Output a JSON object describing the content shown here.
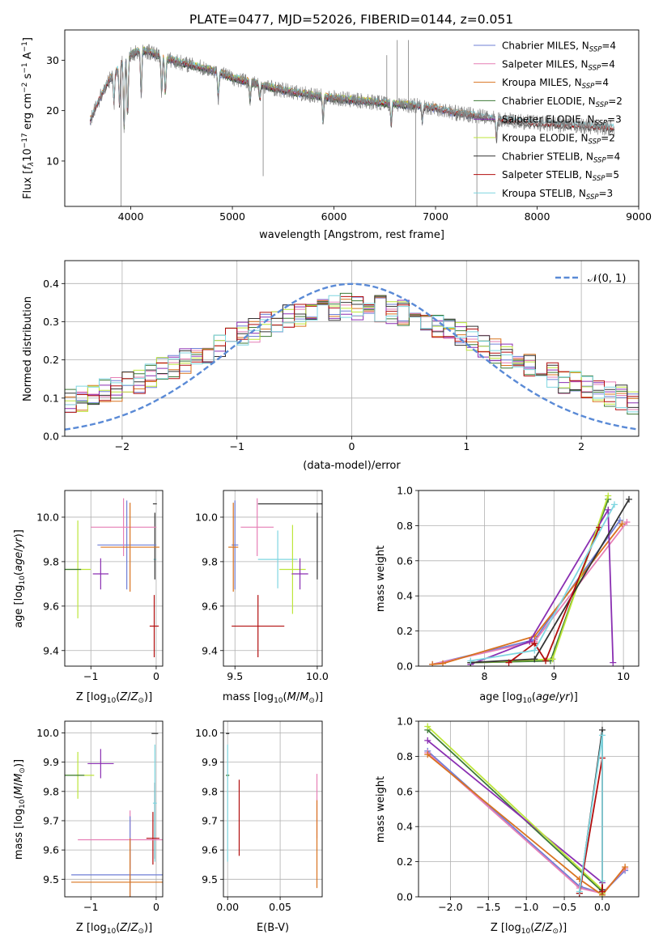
{
  "title": "PLATE=0477, MJD=52026, FIBERID=0144, z=0.051",
  "colors": {
    "Chabrier MILES": "#6f7fd6",
    "Salpeter MILES": "#e67fb6",
    "Kroupa MILES": "#d9731f",
    "Chabrier ELODIE": "#3d7a36",
    "Salpeter ELODIE": "#8a2fb2",
    "Kroupa ELODIE": "#bde63a",
    "Chabrier STELIB": "#333333",
    "Salpeter STELIB": "#b20e0e",
    "Kroupa STELIB": "#7fd6e0",
    "normal": "#5a8ad6",
    "observed": "#808080"
  },
  "chart_data": [
    {
      "type": "line",
      "id": "spectrum",
      "xlabel": "wavelength [Angstrom, rest frame]",
      "ylabel": "Flux [f_λ10^-17 erg cm^-2 s^-1 A^-1]",
      "xlim": [
        3350,
        9000
      ],
      "ylim": [
        1,
        36
      ],
      "xticks": [
        4000,
        5000,
        6000,
        7000,
        8000,
        9000
      ],
      "yticks": [
        10,
        20,
        30
      ],
      "grid": false,
      "legend_position": "upper-right",
      "observed_continuum": {
        "x": [
          3600,
          3700,
          3800,
          3900,
          4000,
          4100,
          4200,
          4400,
          4600,
          4800,
          5000,
          5200,
          5500,
          5800,
          6000,
          6200,
          6500,
          6800,
          7000,
          7200,
          7400,
          7600,
          8000,
          8400,
          8760
        ],
        "y": [
          24,
          27,
          29,
          30,
          31,
          32,
          31.5,
          30,
          29,
          28,
          26.5,
          25.5,
          24,
          23,
          22.5,
          22,
          21.5,
          21,
          20.5,
          19.5,
          19,
          18.3,
          17.5,
          17,
          16.5
        ]
      },
      "absorption_features": [
        {
          "wavelength": 3835,
          "depth": 6
        },
        {
          "wavelength": 3889,
          "depth": 8
        },
        {
          "wavelength": 3934,
          "depth": 14
        },
        {
          "wavelength": 3969,
          "depth": 12
        },
        {
          "wavelength": 4102,
          "depth": 9
        },
        {
          "wavelength": 4304,
          "depth": 7
        },
        {
          "wavelength": 4340,
          "depth": 7
        },
        {
          "wavelength": 4861,
          "depth": 5
        },
        {
          "wavelength": 5175,
          "depth": 4
        },
        {
          "wavelength": 5270,
          "depth": 3
        },
        {
          "wavelength": 5893,
          "depth": 5
        },
        {
          "wavelength": 6563,
          "depth": 4
        },
        {
          "wavelength": 6870,
          "depth": 3
        },
        {
          "wavelength": 7600,
          "depth": 4
        }
      ],
      "spikes": [
        {
          "wavelength": 3905,
          "flux": 1
        },
        {
          "wavelength": 5303,
          "flux": 7
        },
        {
          "wavelength": 6623,
          "flux": 34
        },
        {
          "wavelength": 6733,
          "flux": 34
        },
        {
          "wavelength": 6805,
          "flux": 1
        },
        {
          "wavelength": 7407,
          "flux": 1
        },
        {
          "wavelength": 6520,
          "flux": 31
        }
      ],
      "series": [
        {
          "name": "Chabrier MILES, N_SSP=4",
          "label_main": "Chabrier MILES, N",
          "label_sub": "SSP",
          "label_tail": "=4",
          "color_key": "Chabrier MILES",
          "xrange": [
            3600,
            7430
          ]
        },
        {
          "name": "Salpeter MILES, N_SSP=4",
          "label_main": "Salpeter MILES, N",
          "label_sub": "SSP",
          "label_tail": "=4",
          "color_key": "Salpeter MILES",
          "xrange": [
            3600,
            7430
          ]
        },
        {
          "name": "Kroupa MILES, N_SSP=4",
          "label_main": "Kroupa MILES, N",
          "label_sub": "SSP",
          "label_tail": "=4",
          "color_key": "Kroupa MILES",
          "xrange": [
            3600,
            7430
          ]
        },
        {
          "name": "Chabrier ELODIE, N_SSP=2",
          "label_main": "Chabrier ELODIE, N",
          "label_sub": "SSP",
          "label_tail": "=2",
          "color_key": "Chabrier ELODIE",
          "xrange": [
            3900,
            6800
          ]
        },
        {
          "name": "Salpeter ELODIE, N_SSP=3",
          "label_main": "Salpeter ELODIE, N",
          "label_sub": "SSP",
          "label_tail": "=3",
          "color_key": "Salpeter ELODIE",
          "xrange": [
            3900,
            6800
          ]
        },
        {
          "name": "Kroupa ELODIE, N_SSP=2",
          "label_main": "Kroupa ELODIE, N",
          "label_sub": "SSP",
          "label_tail": "=2",
          "color_key": "Kroupa ELODIE",
          "xrange": [
            3900,
            6800
          ]
        },
        {
          "name": "Chabrier STELIB, N_SSP=4",
          "label_main": "Chabrier STELIB, N",
          "label_sub": "SSP",
          "label_tail": "=4",
          "color_key": "Chabrier STELIB",
          "xrange": [
            3600,
            8760
          ]
        },
        {
          "name": "Salpeter STELIB, N_SSP=5",
          "label_main": "Salpeter STELIB, N",
          "label_sub": "SSP",
          "label_tail": "=5",
          "color_key": "Salpeter STELIB",
          "xrange": [
            3600,
            8760
          ]
        },
        {
          "name": "Kroupa STELIB, N_SSP=3",
          "label_main": "Kroupa STELIB, N",
          "label_sub": "SSP",
          "label_tail": "=3",
          "color_key": "Kroupa STELIB",
          "xrange": [
            3600,
            8760
          ]
        }
      ]
    },
    {
      "type": "line",
      "id": "residuals",
      "xlabel": "(data-model)/error",
      "ylabel": "Normed distribution",
      "xlim": [
        -2.5,
        2.5
      ],
      "ylim": [
        0,
        0.46
      ],
      "xticks": [
        -2,
        -1,
        0,
        1,
        2
      ],
      "yticks": [
        0.0,
        0.1,
        0.2,
        0.3,
        0.4
      ],
      "grid": true,
      "legend_position": "upper-right",
      "gaussian": {
        "name": "𝒩(0, 1)",
        "mean": 0,
        "sigma": 1,
        "color_key": "normal"
      },
      "histogram_bin_width": 0.1,
      "histogram_series": [
        "Chabrier MILES",
        "Salpeter MILES",
        "Kroupa MILES",
        "Chabrier ELODIE",
        "Salpeter ELODIE",
        "Kroupa ELODIE",
        "Chabrier STELIB",
        "Salpeter STELIB",
        "Kroupa STELIB"
      ],
      "histogram_shape": {
        "peak": 0.34,
        "sigma": 1.25,
        "floor_at_edge": 0.05
      }
    },
    {
      "type": "scatter",
      "id": "age-vs-Z",
      "xlabel": "Z [log10(Z/Z⊙)]",
      "ylabel": "age  [log10(age/yr)]",
      "xlim": [
        -1.4,
        0.1
      ],
      "ylim": [
        9.33,
        10.12
      ],
      "xticks": [
        -1,
        0
      ],
      "yticks": [
        9.4,
        9.6,
        9.8,
        10.0
      ],
      "grid": true,
      "points": [
        {
          "series": "Kroupa STELIB",
          "x": -0.02,
          "y": 9.81,
          "xerr": 0.02,
          "yerr": 0.0
        },
        {
          "series": "Chabrier STELIB",
          "x": -0.02,
          "y": 10.06,
          "xerr": 0.03,
          "yerr": 0.0
        },
        {
          "series": "Chabrier STELIB",
          "x": -0.02,
          "y": 9.87,
          "xerr": 0.0,
          "yerr": 0.15
        },
        {
          "series": "Salpeter STELIB",
          "x": -0.03,
          "y": 9.51,
          "xerr": 0.07,
          "yerr": 0.14
        },
        {
          "series": "Chabrier MILES",
          "x": -0.45,
          "y": 9.875,
          "xerr": 0.45,
          "yerr": 0.2
        },
        {
          "series": "Salpeter MILES",
          "x": -0.5,
          "y": 9.955,
          "xerr": 0.5,
          "yerr": 0.13
        },
        {
          "series": "Kroupa MILES",
          "x": -0.4,
          "y": 9.865,
          "xerr": 0.45,
          "yerr": 0.2
        },
        {
          "series": "Kroupa ELODIE",
          "x": -1.2,
          "y": 9.765,
          "xerr": 0.2,
          "yerr": 0.22
        },
        {
          "series": "Chabrier ELODIE",
          "x": -1.3,
          "y": 9.765,
          "xerr": 0.15,
          "yerr": 0.0
        },
        {
          "series": "Salpeter ELODIE",
          "x": -0.85,
          "y": 9.745,
          "xerr": 0.12,
          "yerr": 0.07
        }
      ]
    },
    {
      "type": "scatter",
      "id": "age-vs-mass",
      "xlabel": "mass [log10(M/M⊙)]",
      "ylabel": "",
      "xlim": [
        9.43,
        10.03
      ],
      "ylim": [
        9.33,
        10.12
      ],
      "xticks": [
        9.5,
        10.0
      ],
      "yticks": [
        9.4,
        9.6,
        9.8,
        10.0
      ],
      "grid": true,
      "points": [
        {
          "series": "Chabrier MILES",
          "x": 9.5,
          "y": 9.875,
          "xerr": 0.02,
          "yerr": 0.2
        },
        {
          "series": "Salpeter MILES",
          "x": 9.635,
          "y": 9.955,
          "xerr": 0.1,
          "yerr": 0.13
        },
        {
          "series": "Kroupa MILES",
          "x": 9.49,
          "y": 9.865,
          "xerr": 0.03,
          "yerr": 0.2
        },
        {
          "series": "Chabrier STELIB",
          "x": 9.99,
          "y": 10.06,
          "xerr": 0.35,
          "yerr": 0.0
        },
        {
          "series": "Chabrier STELIB",
          "x": 10.0,
          "y": 9.87,
          "xerr": 0.0,
          "yerr": 0.15
        },
        {
          "series": "Kroupa STELIB",
          "x": 9.76,
          "y": 9.81,
          "xerr": 0.12,
          "yerr": 0.13
        },
        {
          "series": "Kroupa ELODIE",
          "x": 9.85,
          "y": 9.765,
          "xerr": 0.08,
          "yerr": 0.2
        },
        {
          "series": "Salpeter ELODIE",
          "x": 9.895,
          "y": 9.745,
          "xerr": 0.05,
          "yerr": 0.07
        },
        {
          "series": "Salpeter STELIB",
          "x": 9.64,
          "y": 9.51,
          "xerr": 0.16,
          "yerr": 0.14
        }
      ]
    },
    {
      "type": "line",
      "id": "mass-weight-vs-age",
      "xlabel": "age  [log10(age/yr)]",
      "ylabel": "mass weight",
      "xlim": [
        7.05,
        10.22
      ],
      "ylim": [
        0,
        1.0
      ],
      "xticks": [
        8,
        9,
        10
      ],
      "yticks": [
        0.0,
        0.2,
        0.4,
        0.6,
        0.8,
        1.0
      ],
      "grid": true,
      "series": [
        {
          "name": "Chabrier MILES",
          "x": [
            7.25,
            8.72,
            9.95
          ],
          "y": [
            0.01,
            0.15,
            0.83
          ]
        },
        {
          "name": "Salpeter MILES",
          "x": [
            7.25,
            8.72,
            10.05
          ],
          "y": [
            0.01,
            0.14,
            0.82
          ]
        },
        {
          "name": "Kroupa MILES",
          "x": [
            7.25,
            7.4,
            8.72,
            9.98
          ],
          "y": [
            0.01,
            0.015,
            0.17,
            0.81
          ]
        },
        {
          "name": "Chabrier ELODIE",
          "x": [
            7.8,
            8.95,
            9.78
          ],
          "y": [
            0.02,
            0.03,
            0.95
          ]
        },
        {
          "name": "Salpeter ELODIE",
          "x": [
            7.8,
            8.65,
            9.78,
            9.85
          ],
          "y": [
            0.01,
            0.14,
            0.89,
            0.02
          ]
        },
        {
          "name": "Kroupa ELODIE",
          "x": [
            7.8,
            8.98,
            9.78
          ],
          "y": [
            0.02,
            0.04,
            0.97
          ]
        },
        {
          "name": "Chabrier STELIB",
          "x": [
            7.8,
            8.72,
            10.08
          ],
          "y": [
            0.02,
            0.04,
            0.95
          ]
        },
        {
          "name": "Salpeter STELIB",
          "x": [
            8.35,
            8.72,
            8.88,
            9.65
          ],
          "y": [
            0.02,
            0.13,
            0.03,
            0.79
          ]
        },
        {
          "name": "Kroupa STELIB",
          "x": [
            7.8,
            8.72,
            9.87
          ],
          "y": [
            0.03,
            0.09,
            0.92
          ]
        }
      ]
    },
    {
      "type": "scatter",
      "id": "mass-vs-Z",
      "xlabel": "Z [log10(Z/Z⊙)]",
      "ylabel": "mass [log10(M/M⊙)]",
      "xlim": [
        -1.4,
        0.1
      ],
      "ylim": [
        9.44,
        10.04
      ],
      "xticks": [
        -1,
        0
      ],
      "yticks": [
        9.5,
        9.6,
        9.7,
        9.8,
        9.9,
        10.0
      ],
      "grid": true,
      "points": [
        {
          "series": "Chabrier STELIB",
          "x": -0.02,
          "y": 9.998,
          "xerr": 0.05,
          "yerr": 0.0
        },
        {
          "series": "Chabrier STELIB",
          "x": -0.02,
          "y": 9.7,
          "xerr": 0.0,
          "yerr": 0.13
        },
        {
          "series": "Kroupa STELIB",
          "x": -0.02,
          "y": 9.76,
          "xerr": 0.03,
          "yerr": 0.2
        },
        {
          "series": "Salpeter STELIB",
          "x": -0.05,
          "y": 9.64,
          "xerr": 0.1,
          "yerr": 0.09
        },
        {
          "series": "Salpeter ELODIE",
          "x": -0.85,
          "y": 9.895,
          "xerr": 0.2,
          "yerr": 0.05
        },
        {
          "series": "Kroupa ELODIE",
          "x": -1.2,
          "y": 9.855,
          "xerr": 0.25,
          "yerr": 0.08
        },
        {
          "series": "Chabrier ELODIE",
          "x": -1.3,
          "y": 9.855,
          "xerr": 0.2,
          "yerr": 0.0
        },
        {
          "series": "Salpeter MILES",
          "x": -0.4,
          "y": 9.635,
          "xerr": 0.8,
          "yerr": 0.1
        },
        {
          "series": "Chabrier MILES",
          "x": -0.4,
          "y": 9.515,
          "xerr": 0.9,
          "yerr": 0.2
        },
        {
          "series": "Kroupa MILES",
          "x": -0.4,
          "y": 9.49,
          "xerr": 0.9,
          "yerr": 0.15
        }
      ]
    },
    {
      "type": "scatter",
      "id": "mass-vs-EBV",
      "xlabel": "E(B-V)",
      "ylabel": "",
      "xlim": [
        -0.004,
        0.09
      ],
      "ylim": [
        9.44,
        10.04
      ],
      "xticks": [
        0.0,
        0.05
      ],
      "xticklabels": [
        "0.00",
        "0.05"
      ],
      "yticks": [
        9.5,
        9.6,
        9.7,
        9.8,
        9.9,
        10.0
      ],
      "grid": true,
      "points": [
        {
          "series": "Chabrier STELIB",
          "x": 0.0,
          "y": 9.998,
          "yerr": 0.0
        },
        {
          "series": "Chabrier ELODIE",
          "x": 0.0,
          "y": 9.855,
          "yerr": 0.0
        },
        {
          "series": "Kroupa STELIB",
          "x": 0.0,
          "y": 9.76,
          "yerr": 0.2
        },
        {
          "series": "Salpeter STELIB",
          "x": 0.011,
          "y": 9.71,
          "yerr": 0.13
        },
        {
          "series": "Salpeter MILES",
          "x": 0.085,
          "y": 9.75,
          "yerr": 0.11
        },
        {
          "series": "Kroupa MILES",
          "x": 0.085,
          "y": 9.62,
          "yerr": 0.15
        }
      ]
    },
    {
      "type": "line",
      "id": "mass-weight-vs-Z",
      "xlabel": "Z [log10(Z/Z⊙)]",
      "ylabel": "mass weight",
      "xlim": [
        -2.42,
        0.48
      ],
      "ylim": [
        0,
        1.0
      ],
      "xticks": [
        -2.0,
        -1.5,
        -1.0,
        -0.5,
        0.0
      ],
      "yticks": [
        0.0,
        0.2,
        0.4,
        0.6,
        0.8,
        1.0
      ],
      "grid": true,
      "series": [
        {
          "name": "Chabrier MILES",
          "x": [
            -2.3,
            -0.3,
            0.0,
            0.3
          ],
          "y": [
            0.83,
            0.06,
            0.02,
            0.15
          ]
        },
        {
          "name": "Salpeter MILES",
          "x": [
            -2.3,
            -0.3,
            0.0,
            0.3
          ],
          "y": [
            0.82,
            0.05,
            0.02,
            0.16
          ]
        },
        {
          "name": "Kroupa MILES",
          "x": [
            -2.3,
            -0.3,
            0.0,
            0.3
          ],
          "y": [
            0.81,
            0.1,
            0.01,
            0.17
          ]
        },
        {
          "name": "Chabrier ELODIE",
          "x": [
            -2.3,
            0.0,
            0.0
          ],
          "y": [
            0.95,
            0.03,
            0.02
          ]
        },
        {
          "name": "Salpeter ELODIE",
          "x": [
            -2.3,
            0.0,
            0.0
          ],
          "y": [
            0.89,
            0.08,
            0.02
          ]
        },
        {
          "name": "Kroupa ELODIE",
          "x": [
            -2.3,
            0.0,
            0.0
          ],
          "y": [
            0.97,
            0.04,
            0.02
          ]
        },
        {
          "name": "Chabrier STELIB",
          "x": [
            -0.3,
            0.0,
            0.0
          ],
          "y": [
            0.02,
            0.95,
            0.04
          ]
        },
        {
          "name": "Salpeter STELIB",
          "x": [
            -0.3,
            0.0,
            0.0
          ],
          "y": [
            0.02,
            0.79,
            0.03
          ]
        },
        {
          "name": "Kroupa STELIB",
          "x": [
            -0.3,
            0.0,
            0.0
          ],
          "y": [
            0.03,
            0.92,
            0.09
          ]
        }
      ]
    }
  ]
}
